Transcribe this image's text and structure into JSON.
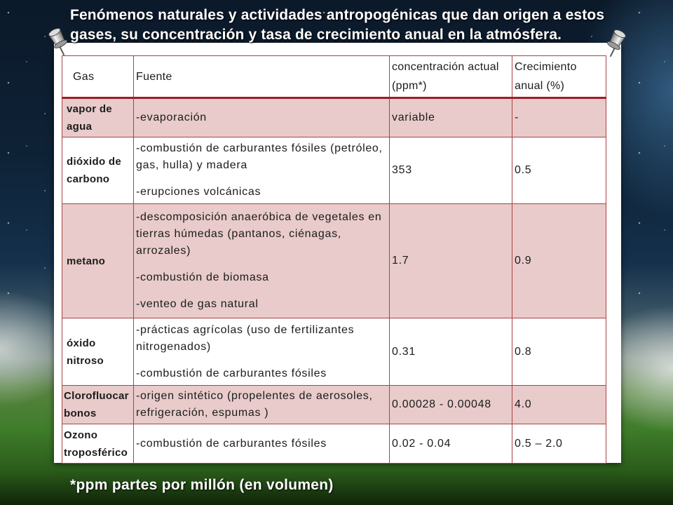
{
  "slide": {
    "title": "Fenómenos naturales y actividades antropogénicas que dan origen a estos gases, su concentración y tasa de crecimiento anual en la atmósfera.",
    "footnote": "*ppm partes por millón (en volumen)"
  },
  "table": {
    "headers": [
      "Gas",
      "Fuente",
      "concentración actual (ppm*)",
      "Crecimiento anual (%)"
    ],
    "rows": [
      {
        "gas": "vapor de agua",
        "fuente": [
          "-evaporación"
        ],
        "concentracion": "variable",
        "crecimiento": "-"
      },
      {
        "gas": "dióxido de carbono",
        "fuente": [
          "-combustión de carburantes fósiles (petróleo, gas, hulla) y madera",
          "-erupciones volcánicas"
        ],
        "concentracion": "353",
        "crecimiento": "0.5"
      },
      {
        "gas": "metano",
        "fuente": [
          "-descomposición anaeróbica de vegetales en tierras húmedas (pantanos, ciénagas, arrozales)",
          "-combustión de biomasa",
          "-venteo de gas natural"
        ],
        "concentracion": "1.7",
        "crecimiento": "0.9"
      },
      {
        "gas": "óxido nitroso",
        "fuente": [
          "-prácticas agrícolas (uso de fertilizantes nitrogenados)",
          "-combustión de carburantes fósiles"
        ],
        "concentracion": "0.31",
        "crecimiento": "0.8"
      },
      {
        "gas": "Clorofluocarbonos",
        "fuente": [
          "-origen sintético (propelentes de aerosoles, refrigeración, espumas )"
        ],
        "concentracion": "0.00028 - 0.00048",
        "crecimiento": "4.0"
      },
      {
        "gas": "Ozono troposférico",
        "fuente": [
          "-combustión de carburantes fósiles"
        ],
        "concentracion": "0.02 - 0.04",
        "crecimiento": "0.5 – 2.0"
      }
    ]
  },
  "icons": {
    "pin_left": "pushpin-icon",
    "pin_right": "pushpin-icon"
  },
  "colors": {
    "title_text": "#ffffff",
    "table_border": "#a84444",
    "header_rule": "#9b1e24",
    "row_shaded": "#e8cbca",
    "row_plain": "#ffffff",
    "card": "#ffffff",
    "cell_text": "#1c1c1c"
  }
}
